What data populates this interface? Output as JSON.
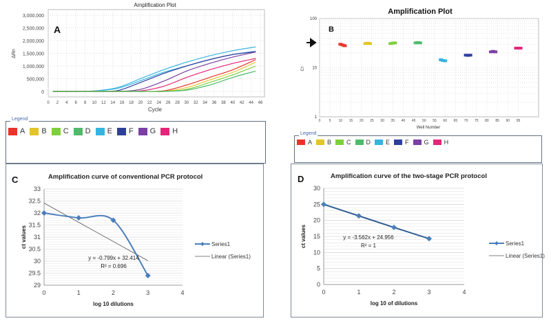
{
  "legend_colors": {
    "A": "#e8342a",
    "B": "#e3c42a",
    "C": "#7fcf3c",
    "D": "#4dbb6a",
    "E": "#35b4e0",
    "F": "#2f3f9e",
    "G": "#7b3fa6",
    "H": "#e3257a"
  },
  "chart_data": [
    {
      "panel": "A",
      "type": "line",
      "title": "Amplification Plot",
      "xlabel": "Cycle",
      "ylabel": "ΔRn",
      "xlim": [
        0,
        46
      ],
      "ylim": [
        0,
        3000000
      ],
      "grid": true,
      "x_ticks": [
        "0",
        "2",
        "4",
        "6",
        "8",
        "10",
        "12",
        "14",
        "16",
        "18",
        "20",
        "22",
        "24",
        "26",
        "28",
        "30",
        "32",
        "34",
        "36",
        "38",
        "40",
        "42",
        "44",
        "46"
      ],
      "y_ticks": [
        "0",
        "500,000",
        "1,000,000",
        "1,500,000",
        "2,000,000",
        "2,500,000",
        "3,000,000"
      ],
      "legend_title": "Legend",
      "legend": [
        "A",
        "B",
        "C",
        "D",
        "E",
        "F",
        "G",
        "H"
      ],
      "x": [
        1,
        5,
        10,
        15,
        20,
        25,
        30,
        35,
        40,
        45
      ],
      "series": [
        {
          "name": "E",
          "values": [
            0,
            0,
            20000,
            150000,
            500000,
            850000,
            1150000,
            1400000,
            1600000,
            1750000
          ]
        },
        {
          "name": "E",
          "values": [
            0,
            0,
            15000,
            120000,
            420000,
            750000,
            1000000,
            1250000,
            1450000,
            1580000
          ]
        },
        {
          "name": "F",
          "values": [
            0,
            0,
            0,
            30000,
            350000,
            700000,
            1000000,
            1250000,
            1450000,
            1560000
          ]
        },
        {
          "name": "G",
          "values": [
            0,
            0,
            0,
            0,
            80000,
            400000,
            800000,
            1100000,
            1350000,
            1550000
          ]
        },
        {
          "name": "H",
          "values": [
            0,
            0,
            0,
            0,
            20000,
            200000,
            550000,
            850000,
            1100000,
            1300000
          ]
        },
        {
          "name": "A",
          "values": [
            0,
            0,
            0,
            0,
            0,
            20000,
            250000,
            550000,
            850000,
            1250000
          ]
        },
        {
          "name": "B",
          "values": [
            0,
            0,
            0,
            0,
            0,
            0,
            150000,
            450000,
            750000,
            1150000
          ]
        },
        {
          "name": "C",
          "values": [
            0,
            0,
            0,
            0,
            0,
            0,
            80000,
            350000,
            650000,
            1000000
          ]
        },
        {
          "name": "D",
          "values": [
            0,
            0,
            0,
            0,
            0,
            0,
            50000,
            250000,
            550000,
            800000
          ]
        }
      ],
      "panel_label": "A"
    },
    {
      "panel": "B",
      "type": "scatter",
      "title": "Amplification Plot",
      "xlabel": "Well Number",
      "ylabel": "Cт",
      "xlim": [
        0,
        100
      ],
      "ylim": [
        1,
        100
      ],
      "yscale": "log",
      "grid": true,
      "x_ticks": [
        "0",
        "5",
        "10",
        "15",
        "20",
        "25",
        "30",
        "35",
        "40",
        "45",
        "50",
        "55",
        "60",
        "65",
        "70",
        "75",
        "80",
        "85",
        "90",
        "95"
      ],
      "y_ticks": [
        "1",
        "10",
        "100"
      ],
      "legend_title": "Legend",
      "legend": [
        "A",
        "B",
        "C",
        "D",
        "E",
        "F",
        "G",
        "H"
      ],
      "points": [
        {
          "group": "A",
          "wells": [
            10,
            11,
            12
          ],
          "ct": [
            30,
            29,
            28
          ]
        },
        {
          "group": "B",
          "wells": [
            22,
            23,
            24
          ],
          "ct": [
            31,
            31.5,
            31
          ]
        },
        {
          "group": "C",
          "wells": [
            34,
            35,
            36
          ],
          "ct": [
            31,
            31.5,
            32
          ]
        },
        {
          "group": "D",
          "wells": [
            46,
            47,
            48
          ],
          "ct": [
            32,
            32.5,
            32
          ]
        },
        {
          "group": "E",
          "wells": [
            58,
            59,
            60
          ],
          "ct": [
            14.5,
            14,
            13.8
          ]
        },
        {
          "group": "F",
          "wells": [
            70,
            71,
            72
          ],
          "ct": [
            18,
            17.8,
            18
          ]
        },
        {
          "group": "G",
          "wells": [
            82,
            83,
            84
          ],
          "ct": [
            21,
            21.5,
            21
          ]
        },
        {
          "group": "H",
          "wells": [
            94,
            95,
            96
          ],
          "ct": [
            25,
            25,
            25
          ]
        }
      ],
      "annotation": "arrow",
      "panel_label": "B"
    },
    {
      "panel": "C",
      "type": "line",
      "title": "Amplification curve of conventional PCR protocol",
      "xlabel": "log 10 dilutions",
      "ylabel": "ct values",
      "xlim": [
        0,
        4
      ],
      "ylim": [
        29,
        33
      ],
      "grid": true,
      "x_ticks": [
        "0",
        "1",
        "2",
        "3",
        "4"
      ],
      "y_ticks": [
        "29",
        "29.5",
        "30",
        "30.5",
        "31",
        "31.5",
        "32",
        "32.5",
        "33"
      ],
      "x": [
        0,
        1,
        2,
        3
      ],
      "series": [
        {
          "name": "Series1",
          "values": [
            32,
            31.8,
            31.7,
            29.4
          ]
        }
      ],
      "trendline": {
        "name": "Linear (Series1)",
        "slope": -0.799,
        "intercept": 32.414,
        "equation": "y = -0.799x + 32.414",
        "r2": "R² = 0.696"
      },
      "panel_label": "C"
    },
    {
      "panel": "D",
      "type": "line",
      "title": "Amplification curve of the two-stage PCR protocol",
      "xlabel": "log 10 of dilutions",
      "ylabel": "ct values",
      "xlim": [
        0,
        4
      ],
      "ylim": [
        0,
        30
      ],
      "grid": true,
      "x_ticks": [
        "0",
        "1",
        "2",
        "3",
        "4"
      ],
      "y_ticks": [
        "0",
        "5",
        "10",
        "15",
        "20",
        "25",
        "30"
      ],
      "x": [
        0,
        1,
        2,
        3
      ],
      "series": [
        {
          "name": "Series1",
          "values": [
            25,
            21.4,
            17.8,
            14.3
          ]
        }
      ],
      "trendline": {
        "name": "Linear (Series1)",
        "slope": -3.562,
        "intercept": 24.956,
        "equation": "y = -3.562x + 24.956",
        "r2": "R² = 1"
      },
      "panel_label": "D"
    }
  ]
}
